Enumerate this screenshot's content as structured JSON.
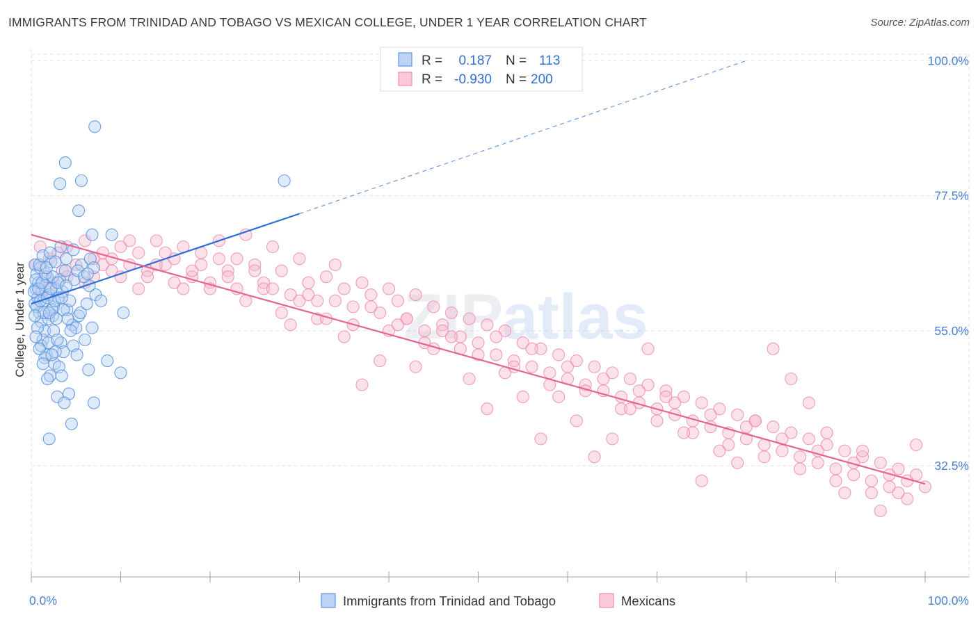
{
  "title": "IMMIGRANTS FROM TRINIDAD AND TOBAGO VS MEXICAN COLLEGE, UNDER 1 YEAR CORRELATION CHART",
  "source": "Source: ZipAtlas.com",
  "watermark": {
    "zip": "ZIP",
    "atlas": "atlas"
  },
  "colors": {
    "blue": "#5b95e0",
    "blue_line": "#2b6fd6",
    "pink": "#f08bb0",
    "pink_line": "#e5638f",
    "grid": "#dde3ea",
    "tick_text": "#4a7fd0"
  },
  "legend": {
    "rows": [
      {
        "r_label": "R =",
        "r_value": "0.187",
        "n_label": "N =",
        "n_value": "113"
      },
      {
        "r_label": "R =",
        "r_value": "-0.930",
        "n_label": "N =",
        "n_value": "200"
      }
    ]
  },
  "chart_data": {
    "type": "scatter",
    "title": "IMMIGRANTS FROM TRINIDAD AND TOBAGO VS MEXICAN COLLEGE, UNDER 1 YEAR CORRELATION CHART",
    "xlabel": "",
    "ylabel": "College, Under 1 year",
    "xlim": [
      0,
      100
    ],
    "ylim": [
      14,
      102
    ],
    "x_tick_labels": [
      "0.0%",
      "100.0%"
    ],
    "y_ticks": [
      32.5,
      55.0,
      77.5,
      100.0
    ],
    "y_tick_labels": [
      "32.5%",
      "55.0%",
      "77.5%",
      "100.0%"
    ],
    "grid": true,
    "legend_position": "top-center",
    "series": [
      {
        "name": "Immigrants from Trinidad and Tobago",
        "color": "#5b95e0",
        "trendline": {
          "x": [
            0,
            30
          ],
          "y": [
            59.5,
            74.5
          ],
          "extended_to": [
            80,
            100
          ]
        },
        "points": [
          [
            0.4,
            66.0
          ],
          [
            0.6,
            64.5
          ],
          [
            0.5,
            62.0
          ],
          [
            0.7,
            60.5
          ],
          [
            0.4,
            59.5
          ],
          [
            0.8,
            63.0
          ],
          [
            1.0,
            65.5
          ],
          [
            1.2,
            61.5
          ],
          [
            0.9,
            58.0
          ],
          [
            1.4,
            60.0
          ],
          [
            1.6,
            62.5
          ],
          [
            1.1,
            56.5
          ],
          [
            1.8,
            64.0
          ],
          [
            2.0,
            61.0
          ],
          [
            1.5,
            55.0
          ],
          [
            2.2,
            66.5
          ],
          [
            2.5,
            59.0
          ],
          [
            1.3,
            53.5
          ],
          [
            2.8,
            62.0
          ],
          [
            3.0,
            60.5
          ],
          [
            1.7,
            51.0
          ],
          [
            2.4,
            57.5
          ],
          [
            3.2,
            63.5
          ],
          [
            3.5,
            61.5
          ],
          [
            2.6,
            49.5
          ],
          [
            3.8,
            65.0
          ],
          [
            4.0,
            58.5
          ],
          [
            2.1,
            47.5
          ],
          [
            4.3,
            60.0
          ],
          [
            4.6,
            56.0
          ],
          [
            3.3,
            53.0
          ],
          [
            5.0,
            55.5
          ],
          [
            5.3,
            57.5
          ],
          [
            3.6,
            51.5
          ],
          [
            4.8,
            63.5
          ],
          [
            5.6,
            66.0
          ],
          [
            2.9,
            44.0
          ],
          [
            6.0,
            53.5
          ],
          [
            6.4,
            48.5
          ],
          [
            7.2,
            61.0
          ],
          [
            4.2,
            44.5
          ],
          [
            3.7,
            43.0
          ],
          [
            7.0,
            43.0
          ],
          [
            4.5,
            39.5
          ],
          [
            2.0,
            37.0
          ],
          [
            6.8,
            55.5
          ],
          [
            6.5,
            62.5
          ],
          [
            1.9,
            57.0
          ],
          [
            2.3,
            58.5
          ],
          [
            0.3,
            61.5
          ],
          [
            0.5,
            63.5
          ],
          [
            0.6,
            59.0
          ],
          [
            0.8,
            62.0
          ],
          [
            1.0,
            60.0
          ],
          [
            1.2,
            63.0
          ],
          [
            1.4,
            58.0
          ],
          [
            1.6,
            64.5
          ],
          [
            1.8,
            60.5
          ],
          [
            2.0,
            58.0
          ],
          [
            2.2,
            62.0
          ],
          [
            2.4,
            64.0
          ],
          [
            2.6,
            60.0
          ],
          [
            2.8,
            57.0
          ],
          [
            3.0,
            63.0
          ],
          [
            3.4,
            60.5
          ],
          [
            3.6,
            58.5
          ],
          [
            3.9,
            62.5
          ],
          [
            4.1,
            57.0
          ],
          [
            4.4,
            55.0
          ],
          [
            4.7,
            52.5
          ],
          [
            0.4,
            57.5
          ],
          [
            0.7,
            55.5
          ],
          [
            1.1,
            52.5
          ],
          [
            1.5,
            50.5
          ],
          [
            1.9,
            53.0
          ],
          [
            2.5,
            55.0
          ],
          [
            2.7,
            51.5
          ],
          [
            3.1,
            49.0
          ],
          [
            3.4,
            47.5
          ],
          [
            5.1,
            51.0
          ],
          [
            5.5,
            58.0
          ],
          [
            6.2,
            59.5
          ],
          [
            0.9,
            66.0
          ],
          [
            1.3,
            67.5
          ],
          [
            1.7,
            65.5
          ],
          [
            2.1,
            68.0
          ],
          [
            2.7,
            66.5
          ],
          [
            3.3,
            69.0
          ],
          [
            3.9,
            67.0
          ],
          [
            4.7,
            68.5
          ],
          [
            5.2,
            65.0
          ],
          [
            5.9,
            64.0
          ],
          [
            6.6,
            67.0
          ],
          [
            7.0,
            65.5
          ],
          [
            0.5,
            54.0
          ],
          [
            0.9,
            52.0
          ],
          [
            1.3,
            49.5
          ],
          [
            1.8,
            47.0
          ],
          [
            2.3,
            51.0
          ],
          [
            2.9,
            53.5
          ],
          [
            7.1,
            89.0
          ],
          [
            3.8,
            83.0
          ],
          [
            5.6,
            80.0
          ],
          [
            3.2,
            79.5
          ],
          [
            5.3,
            75.0
          ],
          [
            6.8,
            71.0
          ],
          [
            28.3,
            80.0
          ],
          [
            6.3,
            64.5
          ],
          [
            9.0,
            71.0
          ],
          [
            10.3,
            58.0
          ],
          [
            7.8,
            60.0
          ],
          [
            8.5,
            50.0
          ],
          [
            10.0,
            48.0
          ]
        ]
      },
      {
        "name": "Mexicans",
        "color": "#f08bb0",
        "trendline": {
          "x": [
            0,
            100
          ],
          "y": [
            71.0,
            29.5
          ]
        },
        "points": [
          [
            0.5,
            66
          ],
          [
            1,
            69
          ],
          [
            1.5,
            64
          ],
          [
            2,
            67
          ],
          [
            2.5,
            63
          ],
          [
            3,
            68
          ],
          [
            3.5,
            65
          ],
          [
            4,
            69
          ],
          [
            5,
            66
          ],
          [
            6,
            70
          ],
          [
            7,
            67
          ],
          [
            8,
            68
          ],
          [
            9,
            65
          ],
          [
            10,
            69
          ],
          [
            11,
            66
          ],
          [
            12,
            68
          ],
          [
            13,
            65
          ],
          [
            14,
            70
          ],
          [
            15,
            66
          ],
          [
            16,
            67
          ],
          [
            17,
            69
          ],
          [
            18,
            64
          ],
          [
            19,
            68
          ],
          [
            20,
            63
          ],
          [
            21,
            67
          ],
          [
            22,
            65
          ],
          [
            23,
            62
          ],
          [
            24,
            71
          ],
          [
            25,
            66
          ],
          [
            26,
            63
          ],
          [
            27,
            69
          ],
          [
            28,
            65
          ],
          [
            29,
            61
          ],
          [
            30,
            67
          ],
          [
            31,
            63
          ],
          [
            32,
            60
          ],
          [
            33,
            64
          ],
          [
            34,
            66
          ],
          [
            35,
            62
          ],
          [
            36,
            59
          ],
          [
            37,
            63
          ],
          [
            38,
            61
          ],
          [
            39,
            58
          ],
          [
            40,
            62
          ],
          [
            41,
            60
          ],
          [
            42,
            57
          ],
          [
            43,
            61
          ],
          [
            44,
            55
          ],
          [
            45,
            59
          ],
          [
            46,
            56
          ],
          [
            47,
            58
          ],
          [
            48,
            54
          ],
          [
            49,
            57
          ],
          [
            50,
            53
          ],
          [
            51,
            56
          ],
          [
            52,
            51
          ],
          [
            53,
            55
          ],
          [
            54,
            50
          ],
          [
            55,
            53
          ],
          [
            56,
            49
          ],
          [
            57,
            52
          ],
          [
            58,
            48
          ],
          [
            59,
            51
          ],
          [
            60,
            47
          ],
          [
            61,
            50
          ],
          [
            62,
            46
          ],
          [
            63,
            49
          ],
          [
            64,
            45
          ],
          [
            65,
            48
          ],
          [
            66,
            44
          ],
          [
            67,
            47
          ],
          [
            68,
            43
          ],
          [
            69,
            46
          ],
          [
            70,
            42
          ],
          [
            71,
            45
          ],
          [
            72,
            41
          ],
          [
            73,
            44
          ],
          [
            74,
            40
          ],
          [
            75,
            43
          ],
          [
            76,
            39
          ],
          [
            77,
            42
          ],
          [
            78,
            38
          ],
          [
            79,
            41
          ],
          [
            80,
            37
          ],
          [
            81,
            40
          ],
          [
            82,
            36
          ],
          [
            83,
            39
          ],
          [
            84,
            35
          ],
          [
            85,
            38
          ],
          [
            86,
            34
          ],
          [
            87,
            37
          ],
          [
            88,
            33
          ],
          [
            89,
            36
          ],
          [
            90,
            32
          ],
          [
            91,
            35
          ],
          [
            92,
            31
          ],
          [
            93,
            34
          ],
          [
            94,
            30
          ],
          [
            95,
            33
          ],
          [
            96,
            29
          ],
          [
            97,
            32
          ],
          [
            98,
            30
          ],
          [
            99,
            31
          ],
          [
            100,
            29
          ],
          [
            2,
            62
          ],
          [
            4,
            64
          ],
          [
            6,
            63
          ],
          [
            8,
            66
          ],
          [
            10,
            64
          ],
          [
            12,
            62
          ],
          [
            14,
            66
          ],
          [
            16,
            63
          ],
          [
            18,
            65
          ],
          [
            20,
            62
          ],
          [
            22,
            64
          ],
          [
            24,
            60
          ],
          [
            26,
            62
          ],
          [
            28,
            58
          ],
          [
            30,
            60
          ],
          [
            32,
            57
          ],
          [
            34,
            60
          ],
          [
            36,
            56
          ],
          [
            38,
            59
          ],
          [
            40,
            55
          ],
          [
            42,
            57
          ],
          [
            44,
            53
          ],
          [
            46,
            55
          ],
          [
            48,
            52
          ],
          [
            50,
            51
          ],
          [
            52,
            54
          ],
          [
            54,
            49
          ],
          [
            56,
            52
          ],
          [
            58,
            46
          ],
          [
            60,
            49
          ],
          [
            62,
            45
          ],
          [
            64,
            47
          ],
          [
            66,
            42
          ],
          [
            68,
            45
          ],
          [
            70,
            40
          ],
          [
            72,
            43
          ],
          [
            74,
            38
          ],
          [
            76,
            41
          ],
          [
            78,
            36
          ],
          [
            80,
            39
          ],
          [
            82,
            34
          ],
          [
            84,
            37
          ],
          [
            86,
            32
          ],
          [
            88,
            35
          ],
          [
            90,
            30
          ],
          [
            92,
            33
          ],
          [
            94,
            28
          ],
          [
            96,
            31
          ],
          [
            98,
            27
          ],
          [
            99,
            36
          ],
          [
            97,
            28
          ],
          [
            95,
            25
          ],
          [
            91,
            28
          ],
          [
            93,
            35
          ],
          [
            89,
            38
          ],
          [
            87,
            43
          ],
          [
            85,
            47
          ],
          [
            83,
            52
          ],
          [
            81,
            40
          ],
          [
            79,
            33
          ],
          [
            77,
            35
          ],
          [
            75,
            30
          ],
          [
            73,
            38
          ],
          [
            71,
            44
          ],
          [
            69,
            52
          ],
          [
            67,
            42
          ],
          [
            65,
            37
          ],
          [
            63,
            34
          ],
          [
            61,
            40
          ],
          [
            59,
            44
          ],
          [
            57,
            37
          ],
          [
            55,
            44
          ],
          [
            53,
            48
          ],
          [
            51,
            42
          ],
          [
            49,
            47
          ],
          [
            47,
            54
          ],
          [
            45,
            52
          ],
          [
            43,
            49
          ],
          [
            41,
            56
          ],
          [
            39,
            50
          ],
          [
            37,
            46
          ],
          [
            35,
            54
          ],
          [
            33,
            57
          ],
          [
            31,
            61
          ],
          [
            29,
            56
          ],
          [
            27,
            62
          ],
          [
            25,
            65
          ],
          [
            23,
            67
          ],
          [
            21,
            70
          ],
          [
            19,
            66
          ],
          [
            17,
            62
          ],
          [
            15,
            68
          ],
          [
            13,
            64
          ],
          [
            11,
            70
          ],
          [
            9,
            67
          ],
          [
            7,
            64
          ]
        ]
      }
    ]
  },
  "bottom_legend": {
    "items": [
      {
        "label": "Immigrants from Trinidad and Tobago",
        "color": "#5b95e0"
      },
      {
        "label": "Mexicans",
        "color": "#f08bb0"
      }
    ]
  }
}
